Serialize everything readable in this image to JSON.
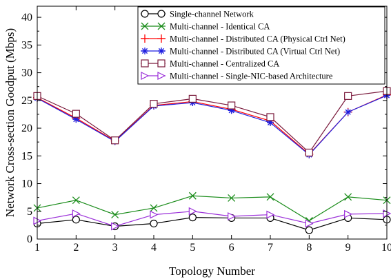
{
  "chart_data": {
    "type": "line",
    "title": "",
    "xlabel": "Topology Number",
    "ylabel": "Network Cross-section Goodput (Mbps)",
    "x": [
      1,
      2,
      3,
      4,
      5,
      6,
      7,
      8,
      9,
      10
    ],
    "xlim": [
      1,
      10
    ],
    "ylim": [
      0,
      42
    ],
    "xticks": [
      "1",
      "2",
      "3",
      "4",
      "5",
      "6",
      "7",
      "8",
      "9",
      "10"
    ],
    "yticks": [
      "0",
      "5",
      "10",
      "15",
      "20",
      "25",
      "30",
      "35",
      "40"
    ],
    "grid": false,
    "legend_position": "top-right",
    "series": [
      {
        "name": "Single-channel Network",
        "color": "#000000",
        "marker": "circle",
        "values": [
          2.8,
          3.5,
          2.3,
          2.8,
          3.9,
          3.8,
          3.8,
          1.6,
          3.8,
          3.5
        ]
      },
      {
        "name": "Multi-channel - Identical CA",
        "color": "#1a8c1a",
        "marker": "x",
        "values": [
          5.6,
          7.0,
          4.4,
          5.6,
          7.8,
          7.4,
          7.6,
          3.3,
          7.6,
          7.0
        ]
      },
      {
        "name": "Multi-channel - Distributed CA (Physical Ctrl Net)",
        "color": "#ff0000",
        "marker": "plus",
        "values": [
          25.5,
          21.8,
          17.7,
          24.1,
          24.8,
          23.4,
          21.3,
          15.3,
          22.9,
          26.0
        ]
      },
      {
        "name": "Multi-channel - Distributed CA (Virtual Ctrl Net)",
        "color": "#1f1fe0",
        "marker": "asterisk",
        "values": [
          25.4,
          21.6,
          17.6,
          24.0,
          24.6,
          23.2,
          21.0,
          15.2,
          22.9,
          25.9
        ]
      },
      {
        "name": "Multi-channel - Centralized CA",
        "color": "#7a1a3c",
        "marker": "square",
        "values": [
          25.8,
          22.6,
          17.8,
          24.4,
          25.3,
          24.1,
          22.0,
          15.6,
          25.8,
          26.7
        ]
      },
      {
        "name": "Multi-channel - Single-NIC-based Architecture",
        "color": "#9b30d9",
        "marker": "triangle-right",
        "values": [
          3.3,
          4.6,
          2.3,
          4.4,
          5.0,
          4.1,
          4.4,
          2.8,
          4.5,
          4.6
        ]
      }
    ]
  }
}
